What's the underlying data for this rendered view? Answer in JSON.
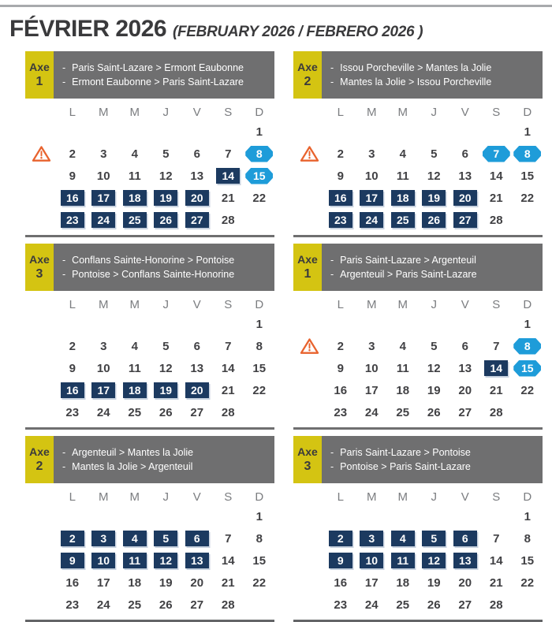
{
  "title": {
    "main": "FÉVRIER 2026",
    "subtitle": "(FEBRUARY 2026 / FEBRERO 2026 )"
  },
  "weekdays": [
    "L",
    "M",
    "M",
    "J",
    "V",
    "S",
    "D"
  ],
  "colors": {
    "navy": "#1c3a60",
    "pill_blue": "#1e9cd9",
    "axe_yellow": "#d4c412",
    "bar_gray": "#6f6f70",
    "warning_orange": "#e8632e",
    "title_color": "#3a3a3c"
  },
  "icons": {
    "warning": "warning-icon"
  },
  "calendars": [
    {
      "axe_label": "Axe",
      "axe_number": "1",
      "routes": [
        "Paris Saint-Lazare > Ermont Eaubonne",
        "Ermont Eaubonne > Paris Saint-Lazare"
      ],
      "warning_week": 2,
      "weeks": [
        [
          null,
          null,
          null,
          null,
          null,
          null,
          1
        ],
        [
          2,
          3,
          4,
          5,
          6,
          7,
          8
        ],
        [
          9,
          10,
          11,
          12,
          13,
          14,
          15
        ],
        [
          16,
          17,
          18,
          19,
          20,
          21,
          22
        ],
        [
          23,
          24,
          25,
          26,
          27,
          28,
          null
        ]
      ],
      "navy_days": [
        14,
        16,
        17,
        18,
        19,
        20,
        23,
        24,
        25,
        26,
        27
      ],
      "pill_days": [
        8,
        15
      ]
    },
    {
      "axe_label": "Axe",
      "axe_number": "2",
      "routes": [
        "Issou Porcheville > Mantes la Jolie",
        "Mantes la Jolie > Issou Porcheville"
      ],
      "warning_week": 2,
      "weeks": [
        [
          null,
          null,
          null,
          null,
          null,
          null,
          1
        ],
        [
          2,
          3,
          4,
          5,
          6,
          7,
          8
        ],
        [
          9,
          10,
          11,
          12,
          13,
          14,
          15
        ],
        [
          16,
          17,
          18,
          19,
          20,
          21,
          22
        ],
        [
          23,
          24,
          25,
          26,
          27,
          28,
          null
        ]
      ],
      "navy_days": [
        16,
        17,
        18,
        19,
        20,
        23,
        24,
        25,
        26,
        27
      ],
      "pill_days": [
        7,
        8
      ]
    },
    {
      "axe_label": "Axe",
      "axe_number": "3",
      "routes": [
        "Conflans Sainte-Honorine > Pontoise",
        "Pontoise > Conflans Sainte-Honorine"
      ],
      "warning_week": 0,
      "weeks": [
        [
          null,
          null,
          null,
          null,
          null,
          null,
          1
        ],
        [
          2,
          3,
          4,
          5,
          6,
          7,
          8
        ],
        [
          9,
          10,
          11,
          12,
          13,
          14,
          15
        ],
        [
          16,
          17,
          18,
          19,
          20,
          21,
          22
        ],
        [
          23,
          24,
          25,
          26,
          27,
          28,
          null
        ]
      ],
      "navy_days": [
        16,
        17,
        18,
        19,
        20
      ],
      "pill_days": []
    },
    {
      "axe_label": "Axe",
      "axe_number": "1",
      "routes": [
        "Paris Saint-Lazare > Argenteuil",
        "Argenteuil > Paris Saint-Lazare"
      ],
      "warning_week": 2,
      "weeks": [
        [
          null,
          null,
          null,
          null,
          null,
          null,
          1
        ],
        [
          2,
          3,
          4,
          5,
          6,
          7,
          8
        ],
        [
          9,
          10,
          11,
          12,
          13,
          14,
          15
        ],
        [
          16,
          17,
          18,
          19,
          20,
          21,
          22
        ],
        [
          23,
          24,
          25,
          26,
          27,
          28,
          null
        ]
      ],
      "navy_days": [
        14
      ],
      "pill_days": [
        8,
        15
      ]
    },
    {
      "axe_label": "Axe",
      "axe_number": "2",
      "routes": [
        "Argenteuil > Mantes la Jolie",
        "Mantes la Jolie > Argenteuil"
      ],
      "warning_week": 0,
      "weeks": [
        [
          null,
          null,
          null,
          null,
          null,
          null,
          1
        ],
        [
          2,
          3,
          4,
          5,
          6,
          7,
          8
        ],
        [
          9,
          10,
          11,
          12,
          13,
          14,
          15
        ],
        [
          16,
          17,
          18,
          19,
          20,
          21,
          22
        ],
        [
          23,
          24,
          25,
          26,
          27,
          28,
          null
        ]
      ],
      "navy_days": [
        2,
        3,
        4,
        5,
        6,
        9,
        10,
        11,
        12,
        13
      ],
      "pill_days": []
    },
    {
      "axe_label": "Axe",
      "axe_number": "3",
      "routes": [
        "Paris Saint-Lazare > Pontoise",
        "Pontoise > Paris Saint-Lazare"
      ],
      "warning_week": 0,
      "weeks": [
        [
          null,
          null,
          null,
          null,
          null,
          null,
          1
        ],
        [
          2,
          3,
          4,
          5,
          6,
          7,
          8
        ],
        [
          9,
          10,
          11,
          12,
          13,
          14,
          15
        ],
        [
          16,
          17,
          18,
          19,
          20,
          21,
          22
        ],
        [
          23,
          24,
          25,
          26,
          27,
          28,
          null
        ]
      ],
      "navy_days": [
        2,
        3,
        4,
        5,
        6,
        9,
        10,
        11,
        12,
        13
      ],
      "pill_days": []
    }
  ]
}
